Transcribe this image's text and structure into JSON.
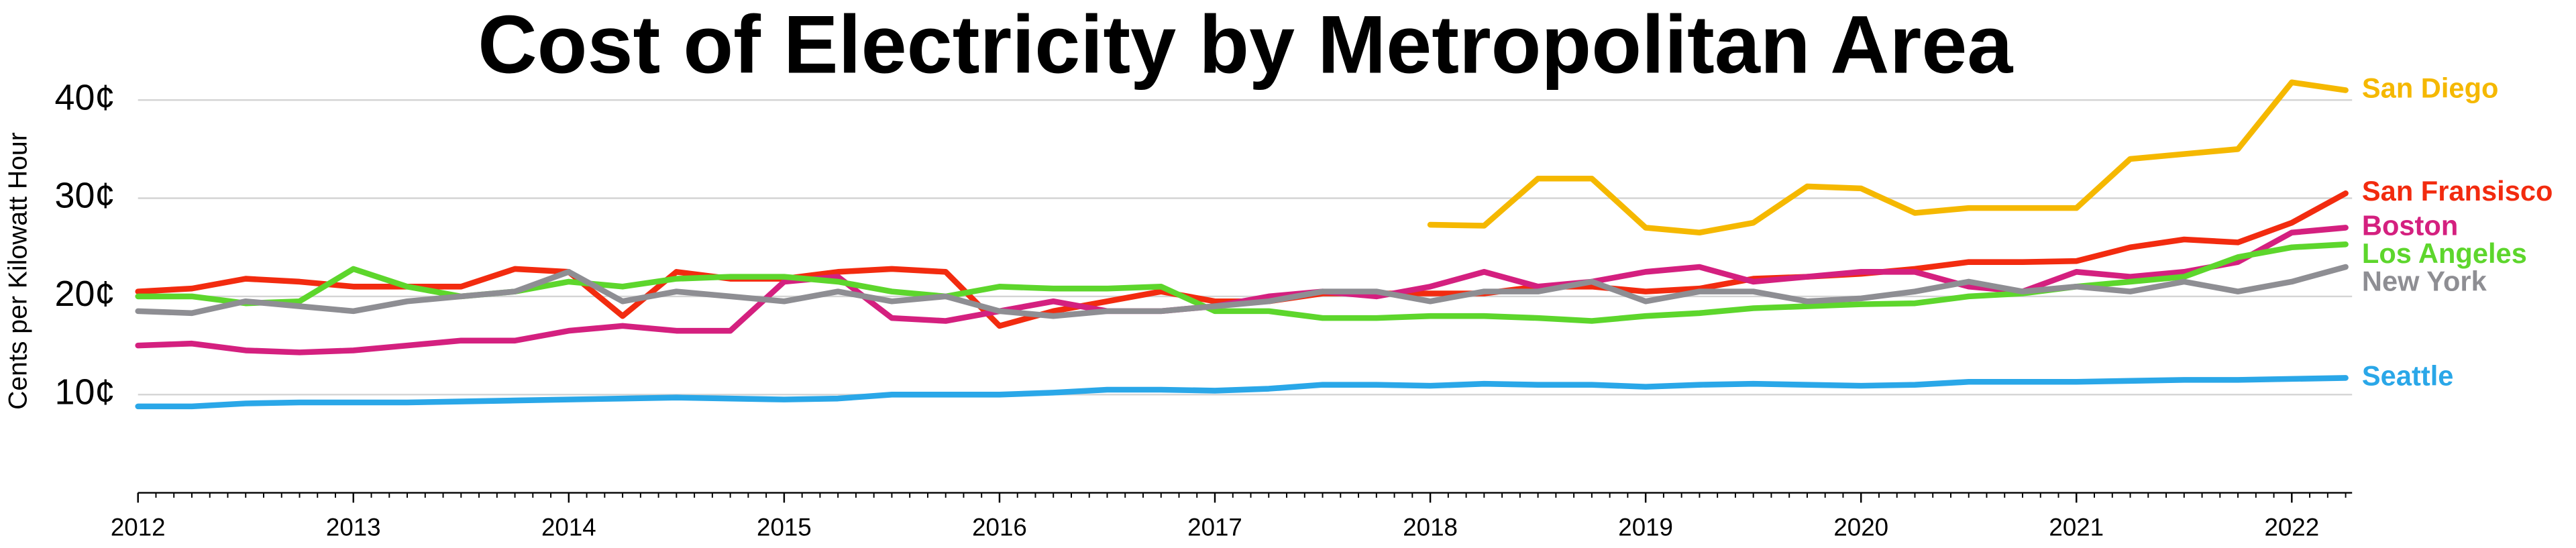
{
  "chart_data": {
    "type": "line",
    "title": "Cost of Electricity by Metropolitan Area",
    "y_label": "Cents per Kilowatt Hour",
    "x": [
      2012,
      2012.25,
      2012.5,
      2012.75,
      2013,
      2013.25,
      2013.5,
      2013.75,
      2014,
      2014.25,
      2014.5,
      2014.75,
      2015,
      2015.25,
      2015.5,
      2015.75,
      2016,
      2016.25,
      2016.5,
      2016.75,
      2017,
      2017.25,
      2017.5,
      2017.75,
      2018,
      2018.25,
      2018.5,
      2018.75,
      2019,
      2019.25,
      2019.5,
      2019.75,
      2020,
      2020.25,
      2020.5,
      2020.75,
      2021,
      2021.25,
      2021.5,
      2021.75,
      2022,
      2022.25
    ],
    "xlim": [
      2012,
      2022.28
    ],
    "xticks": [
      2012,
      2013,
      2014,
      2015,
      2016,
      2017,
      2018,
      2019,
      2020,
      2021,
      2022
    ],
    "ylim": [
      0,
      45
    ],
    "yticks": [
      {
        "value": 10,
        "label": "10¢"
      },
      {
        "value": 20,
        "label": "20¢"
      },
      {
        "value": 30,
        "label": "30¢"
      },
      {
        "value": 40,
        "label": "40¢"
      }
    ],
    "grid": true,
    "series": [
      {
        "name": "San Diego",
        "color": "#f5b800",
        "values": [
          null,
          null,
          null,
          null,
          null,
          null,
          null,
          null,
          null,
          null,
          null,
          null,
          null,
          null,
          null,
          null,
          null,
          null,
          null,
          null,
          null,
          null,
          null,
          null,
          27.3,
          27.2,
          32.0,
          32.0,
          27.0,
          26.5,
          27.5,
          31.2,
          31.0,
          28.5,
          29.0,
          29.0,
          29.0,
          34.0,
          34.5,
          35.0,
          41.8,
          41.0
        ]
      },
      {
        "name": "San Fransisco",
        "color": "#f22b0f",
        "values": [
          20.5,
          20.8,
          21.8,
          21.5,
          21.0,
          21.0,
          21.0,
          22.8,
          22.5,
          18.0,
          22.5,
          21.8,
          21.8,
          22.5,
          22.8,
          22.5,
          17.0,
          18.5,
          19.5,
          20.5,
          19.5,
          19.5,
          20.3,
          20.3,
          20.3,
          20.3,
          21.0,
          21.0,
          20.5,
          20.8,
          21.8,
          22.0,
          22.3,
          22.8,
          23.5,
          23.5,
          23.6,
          25.0,
          25.8,
          25.5,
          27.5,
          30.5
        ]
      },
      {
        "name": "Boston",
        "color": "#d4207f",
        "values": [
          15.0,
          15.2,
          14.5,
          14.3,
          14.5,
          15.0,
          15.5,
          15.5,
          16.5,
          17.0,
          16.5,
          16.5,
          21.5,
          22.0,
          17.8,
          17.5,
          18.5,
          19.5,
          18.5,
          18.5,
          19.0,
          20.0,
          20.5,
          20.0,
          21.0,
          22.5,
          21.0,
          21.5,
          22.5,
          23.0,
          21.5,
          22.0,
          22.5,
          22.5,
          21.0,
          20.5,
          22.5,
          22.0,
          22.5,
          23.5,
          26.5,
          27.0
        ]
      },
      {
        "name": "Los Angeles",
        "color": "#5dd62c",
        "values": [
          20.0,
          20.0,
          19.3,
          19.5,
          22.8,
          21.0,
          20.0,
          20.5,
          21.5,
          21.0,
          21.8,
          22.0,
          22.0,
          21.5,
          20.5,
          20.0,
          21.0,
          20.8,
          20.8,
          21.0,
          18.5,
          18.5,
          17.8,
          17.8,
          18.0,
          18.0,
          17.8,
          17.5,
          18.0,
          18.3,
          18.8,
          19.0,
          19.2,
          19.3,
          20.0,
          20.3,
          21.0,
          21.5,
          22.0,
          24.0,
          25.0,
          25.3
        ]
      },
      {
        "name": "New York",
        "color": "#8e8e93",
        "values": [
          18.5,
          18.3,
          19.5,
          19.0,
          18.5,
          19.5,
          20.0,
          20.5,
          22.5,
          19.5,
          20.5,
          20.0,
          19.5,
          20.5,
          19.5,
          20.0,
          18.5,
          18.0,
          18.5,
          18.5,
          19.0,
          19.5,
          20.5,
          20.5,
          19.5,
          20.5,
          20.5,
          21.5,
          19.5,
          20.5,
          20.5,
          19.5,
          19.8,
          20.5,
          21.5,
          20.5,
          21.0,
          20.5,
          21.5,
          20.5,
          21.5,
          23.0
        ]
      },
      {
        "name": "Seattle",
        "color": "#2aa7e8",
        "values": [
          8.8,
          8.8,
          9.1,
          9.2,
          9.2,
          9.2,
          9.3,
          9.4,
          9.5,
          9.6,
          9.7,
          9.6,
          9.5,
          9.6,
          10.0,
          10.0,
          10.0,
          10.2,
          10.5,
          10.5,
          10.4,
          10.6,
          11.0,
          11.0,
          10.9,
          11.1,
          11.0,
          11.0,
          10.8,
          11.0,
          11.1,
          11.0,
          10.9,
          11.0,
          11.3,
          11.3,
          11.3,
          11.4,
          11.5,
          11.5,
          11.6,
          11.7
        ]
      }
    ]
  }
}
